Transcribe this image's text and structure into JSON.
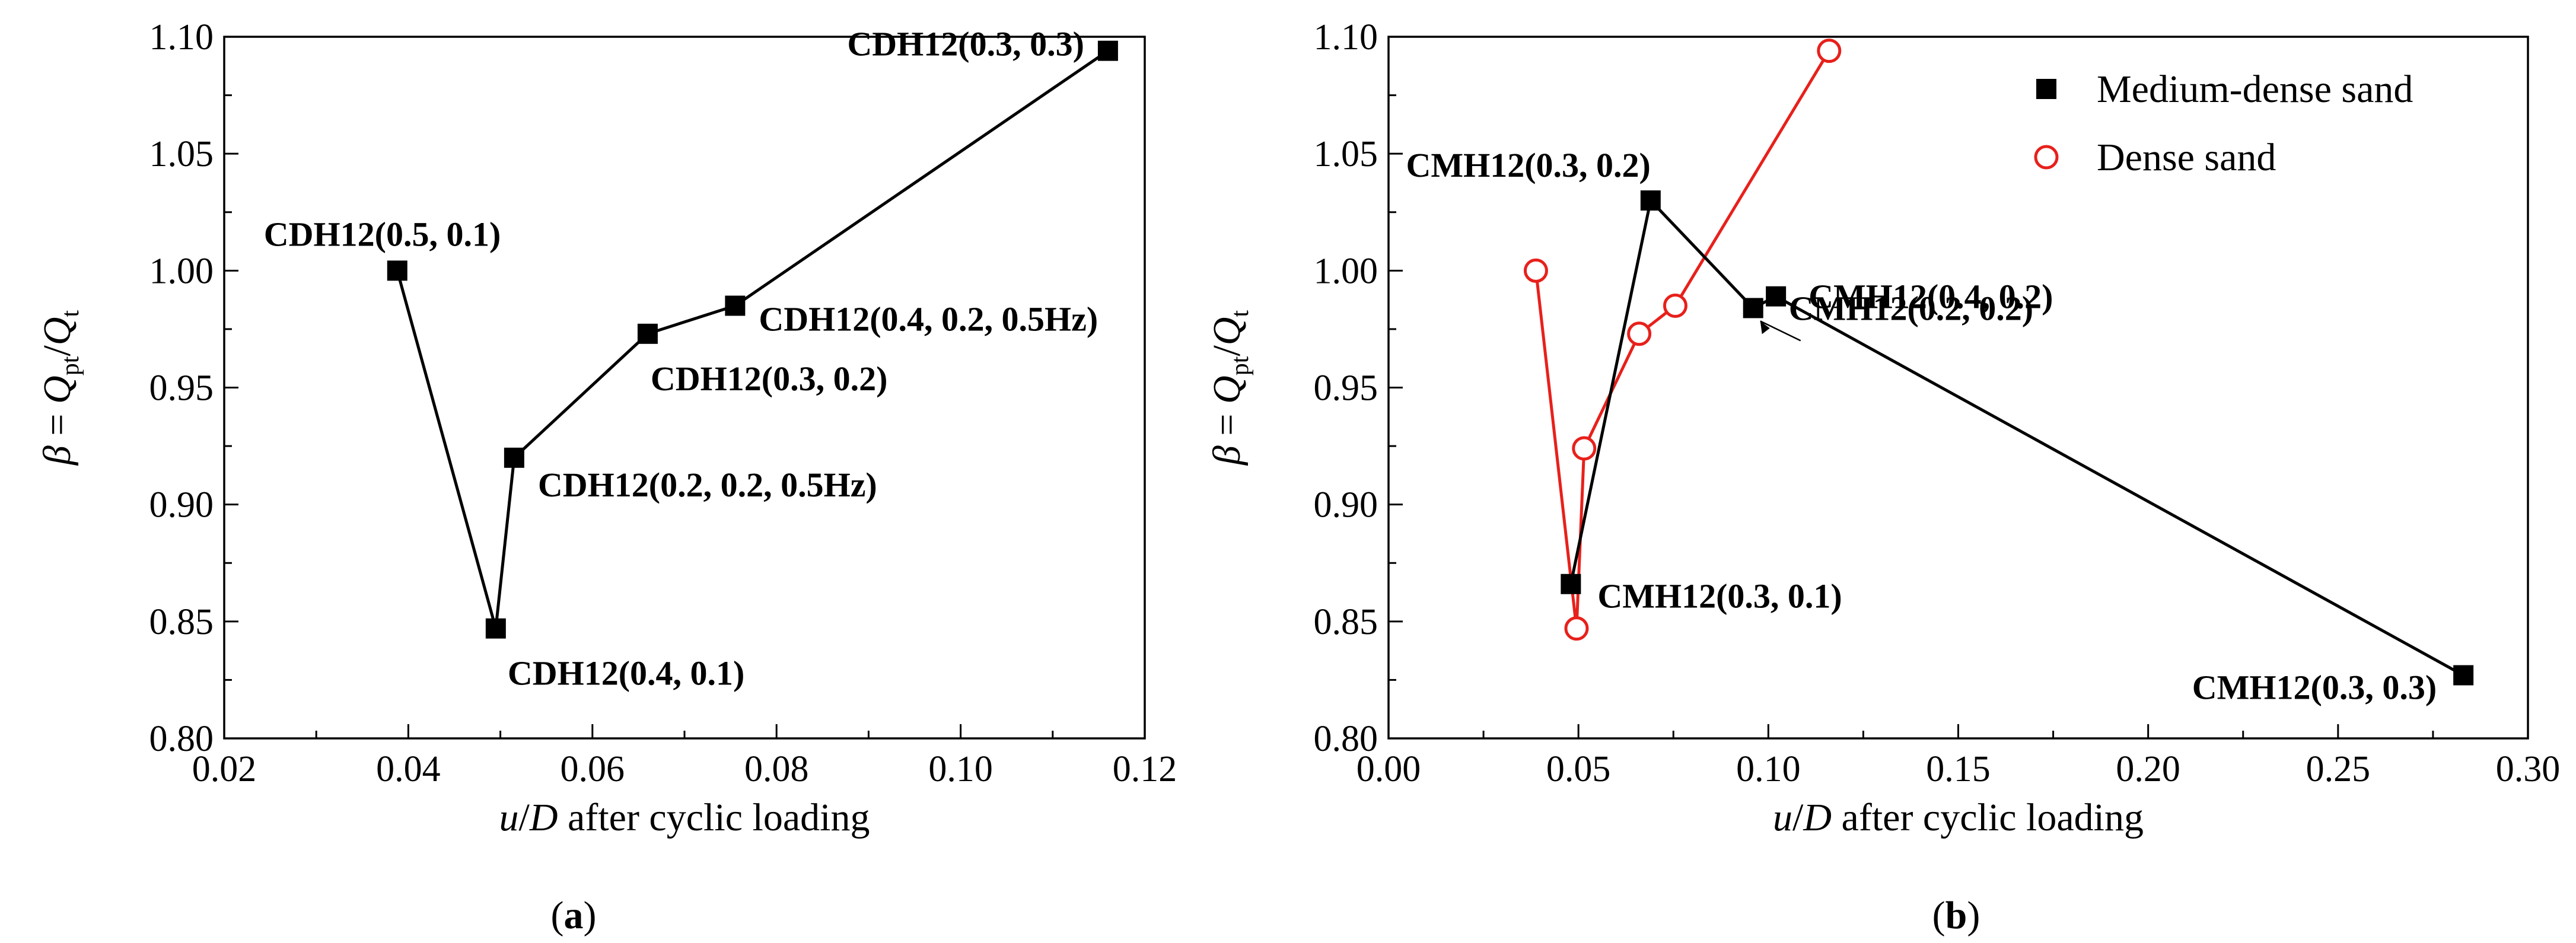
{
  "chart_data": [
    {
      "type": "line",
      "panel_label": "a",
      "xlabel_var": "u",
      "xlabel_var2": "D",
      "xlabel_rest": " after cyclic loading",
      "ylabel_beta": "β",
      "ylabel_q1": "Q",
      "ylabel_sub1": "pt",
      "ylabel_q2": "Q",
      "ylabel_sub2": "t",
      "xlim": [
        0.02,
        0.12
      ],
      "ylim": [
        0.8,
        1.1
      ],
      "x_ticks": [
        0.02,
        0.04,
        0.06,
        0.08,
        0.1,
        0.12
      ],
      "x_tick_labels": [
        "0.02",
        "0.04",
        "0.06",
        "0.08",
        "0.10",
        "0.12"
      ],
      "y_ticks": [
        0.8,
        0.85,
        0.9,
        0.95,
        1.0,
        1.05,
        1.1
      ],
      "y_tick_labels": [
        "0.80",
        "0.85",
        "0.90",
        "0.95",
        "1.00",
        "1.05",
        "1.10"
      ],
      "series": [
        {
          "name": "CDH12",
          "color": "#000000",
          "marker": "square",
          "points": [
            {
              "x": 0.0388,
              "y": 1.0,
              "label": "CDH12(0.5, 0.1)"
            },
            {
              "x": 0.0495,
              "y": 0.847,
              "label": "CDH12(0.4, 0.1)"
            },
            {
              "x": 0.0515,
              "y": 0.92,
              "label": "CDH12(0.2, 0.2, 0.5Hz)"
            },
            {
              "x": 0.066,
              "y": 0.973,
              "label": "CDH12(0.3, 0.2)"
            },
            {
              "x": 0.0755,
              "y": 0.985,
              "label": "CDH12(0.4, 0.2, 0.5Hz)"
            },
            {
              "x": 0.116,
              "y": 1.094,
              "label": "CDH12(0.3, 0.3)"
            }
          ]
        }
      ]
    },
    {
      "type": "line",
      "panel_label": "b",
      "xlabel_var": "u",
      "xlabel_var2": "D",
      "xlabel_rest": " after cyclic loading",
      "ylabel_beta": "β",
      "ylabel_q1": "Q",
      "ylabel_sub1": "pt",
      "ylabel_q2": "Q",
      "ylabel_sub2": "t",
      "xlim": [
        0.0,
        0.3
      ],
      "ylim": [
        0.8,
        1.1
      ],
      "x_ticks": [
        0.0,
        0.05,
        0.1,
        0.15,
        0.2,
        0.25,
        0.3
      ],
      "x_tick_labels": [
        "0.00",
        "0.05",
        "0.10",
        "0.15",
        "0.20",
        "0.25",
        "0.30"
      ],
      "y_ticks": [
        0.8,
        0.85,
        0.9,
        0.95,
        1.0,
        1.05,
        1.1
      ],
      "y_tick_labels": [
        "0.80",
        "0.85",
        "0.90",
        "0.95",
        "1.00",
        "1.05",
        "1.10"
      ],
      "legend": [
        {
          "name": "Medium-dense sand",
          "color": "#000000",
          "marker": "square"
        },
        {
          "name": "Dense sand",
          "color": "#e8201b",
          "marker": "circle-open"
        }
      ],
      "series": [
        {
          "name": "Medium-dense sand",
          "color": "#000000",
          "marker": "square",
          "points": [
            {
              "x": 0.048,
              "y": 0.866,
              "label": "CMH12(0.3, 0.1)"
            },
            {
              "x": 0.069,
              "y": 1.03,
              "label": "CMH12(0.3, 0.2)"
            },
            {
              "x": 0.096,
              "y": 0.984,
              "label": "CMH12(0.2, 0.2)"
            },
            {
              "x": 0.102,
              "y": 0.989,
              "label": "CMH12(0.4, 0.2)"
            },
            {
              "x": 0.283,
              "y": 0.827,
              "label": "CMH12(0.3, 0.3)"
            }
          ]
        },
        {
          "name": "Dense sand",
          "color": "#e8201b",
          "marker": "circle-open",
          "points": [
            {
              "x": 0.0388,
              "y": 1.0
            },
            {
              "x": 0.0495,
              "y": 0.847
            },
            {
              "x": 0.0515,
              "y": 0.924
            },
            {
              "x": 0.066,
              "y": 0.973
            },
            {
              "x": 0.0755,
              "y": 0.985
            },
            {
              "x": 0.116,
              "y": 1.094
            }
          ]
        }
      ]
    }
  ]
}
